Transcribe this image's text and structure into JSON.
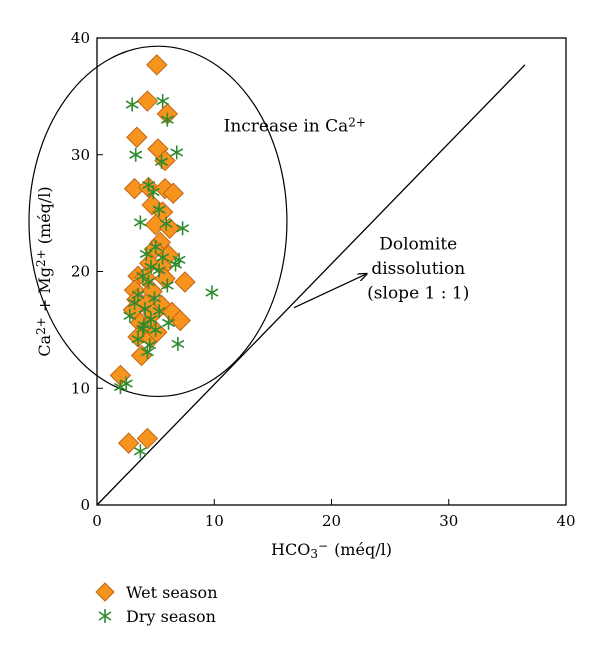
{
  "chart_data": {
    "type": "scatter",
    "xlabel_base": "HCO",
    "xlabel_sub": "3",
    "xlabel_sup": "−",
    "xlabel_unit": "(méq/l)",
    "ylabel": [
      "Ca",
      "2+",
      " + Mg",
      "2+",
      " (méq/l)"
    ],
    "xlim": [
      0,
      40
    ],
    "ylim": [
      0,
      40
    ],
    "xticks": [
      0,
      10,
      20,
      30,
      40
    ],
    "yticks": [
      0,
      10,
      20,
      30,
      40
    ],
    "grid": false,
    "legend_position": "bottom-left",
    "series": [
      {
        "name": "Wet season",
        "marker": "diamond",
        "color": "#F7941D",
        "edge": "#C0651A",
        "points": [
          [
            5.1,
            37.7
          ],
          [
            4.3,
            34.6
          ],
          [
            6.0,
            33.5
          ],
          [
            3.4,
            31.5
          ],
          [
            5.2,
            30.5
          ],
          [
            5.8,
            29.5
          ],
          [
            3.2,
            27.1
          ],
          [
            4.4,
            27.2
          ],
          [
            5.8,
            27.1
          ],
          [
            6.5,
            26.7
          ],
          [
            4.7,
            25.7
          ],
          [
            5.6,
            25.1
          ],
          [
            5.0,
            24.0
          ],
          [
            6.2,
            23.7
          ],
          [
            5.4,
            22.5
          ],
          [
            4.9,
            21.9
          ],
          [
            6.1,
            21.4
          ],
          [
            4.5,
            20.7
          ],
          [
            5.6,
            20.4
          ],
          [
            3.5,
            19.6
          ],
          [
            4.1,
            19.5
          ],
          [
            5.8,
            19.4
          ],
          [
            7.5,
            19.1
          ],
          [
            3.2,
            18.4
          ],
          [
            4.7,
            18.3
          ],
          [
            3.4,
            17.6
          ],
          [
            4.2,
            17.2
          ],
          [
            5.5,
            17.1
          ],
          [
            3.1,
            16.7
          ],
          [
            4.8,
            16.4
          ],
          [
            6.4,
            16.5
          ],
          [
            3.7,
            15.6
          ],
          [
            4.4,
            15.3
          ],
          [
            7.1,
            15.8
          ],
          [
            3.5,
            14.4
          ],
          [
            4.6,
            14.3
          ],
          [
            5.1,
            14.8
          ],
          [
            3.8,
            12.8
          ],
          [
            2.0,
            11.1
          ],
          [
            2.7,
            5.3
          ],
          [
            4.3,
            5.7
          ]
        ]
      },
      {
        "name": "Dry season",
        "marker": "asterisk",
        "color": "#2E8B2E",
        "points": [
          [
            3.0,
            34.3
          ],
          [
            5.6,
            34.6
          ],
          [
            6.0,
            33.0
          ],
          [
            3.3,
            30.0
          ],
          [
            6.8,
            30.2
          ],
          [
            5.5,
            29.4
          ],
          [
            4.4,
            27.4
          ],
          [
            4.8,
            26.8
          ],
          [
            5.3,
            25.3
          ],
          [
            3.7,
            24.2
          ],
          [
            5.9,
            24.1
          ],
          [
            7.3,
            23.7
          ],
          [
            5.0,
            22.1
          ],
          [
            4.2,
            21.5
          ],
          [
            5.6,
            21.2
          ],
          [
            7.0,
            21.0
          ],
          [
            6.7,
            20.6
          ],
          [
            4.6,
            20.4
          ],
          [
            5.3,
            20.1
          ],
          [
            3.9,
            19.6
          ],
          [
            4.4,
            19.1
          ],
          [
            6.0,
            18.8
          ],
          [
            9.8,
            18.2
          ],
          [
            3.5,
            18.0
          ],
          [
            4.9,
            17.7
          ],
          [
            3.2,
            17.3
          ],
          [
            4.1,
            16.8
          ],
          [
            5.3,
            16.6
          ],
          [
            2.8,
            16.2
          ],
          [
            4.6,
            15.9
          ],
          [
            6.1,
            15.6
          ],
          [
            3.9,
            15.1
          ],
          [
            5.0,
            15.0
          ],
          [
            3.5,
            14.2
          ],
          [
            4.5,
            13.7
          ],
          [
            6.9,
            13.8
          ],
          [
            4.3,
            13.1
          ],
          [
            4.0,
            15.4
          ],
          [
            2.0,
            10.1
          ],
          [
            2.5,
            10.4
          ],
          [
            3.7,
            4.6
          ]
        ]
      }
    ],
    "lines": [
      {
        "name": "dolomite-line",
        "x": [
          0,
          36.5
        ],
        "y": [
          0,
          37.7
        ]
      }
    ],
    "ellipse": {
      "cx": 5.2,
      "cy": 24.3,
      "rx": 11.0,
      "ry": 15.0
    },
    "annotations": {
      "increase_base": "Increase in Ca",
      "increase_sup": "2+",
      "dolomite_line1": "Dolomite",
      "dolomite_line2": "dissolution",
      "dolomite_line3": "(slope 1 : 1)",
      "arrow_from": [
        16.8,
        16.9
      ],
      "arrow_to": [
        23.0,
        19.8
      ]
    }
  }
}
